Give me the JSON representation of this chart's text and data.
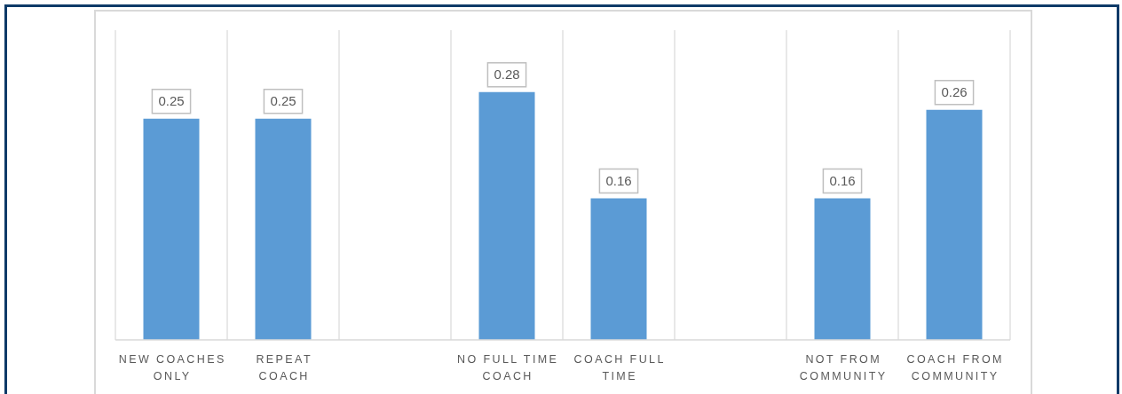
{
  "chart_data": {
    "type": "bar",
    "categories": [
      "NEW COACHES ONLY",
      "REPEAT COACH",
      null,
      "NO FULL TIME COACH",
      "COACH FULL TIME",
      null,
      "NOT FROM COMMUNITY",
      "COACH FROM COMMUNITY"
    ],
    "values": [
      0.25,
      0.25,
      null,
      0.28,
      0.16,
      null,
      0.16,
      0.26
    ],
    "color": "#5b9bd5",
    "ylim": [
      0,
      0.35
    ],
    "data_labels": true,
    "grid": "x",
    "tick_labels": "x"
  }
}
